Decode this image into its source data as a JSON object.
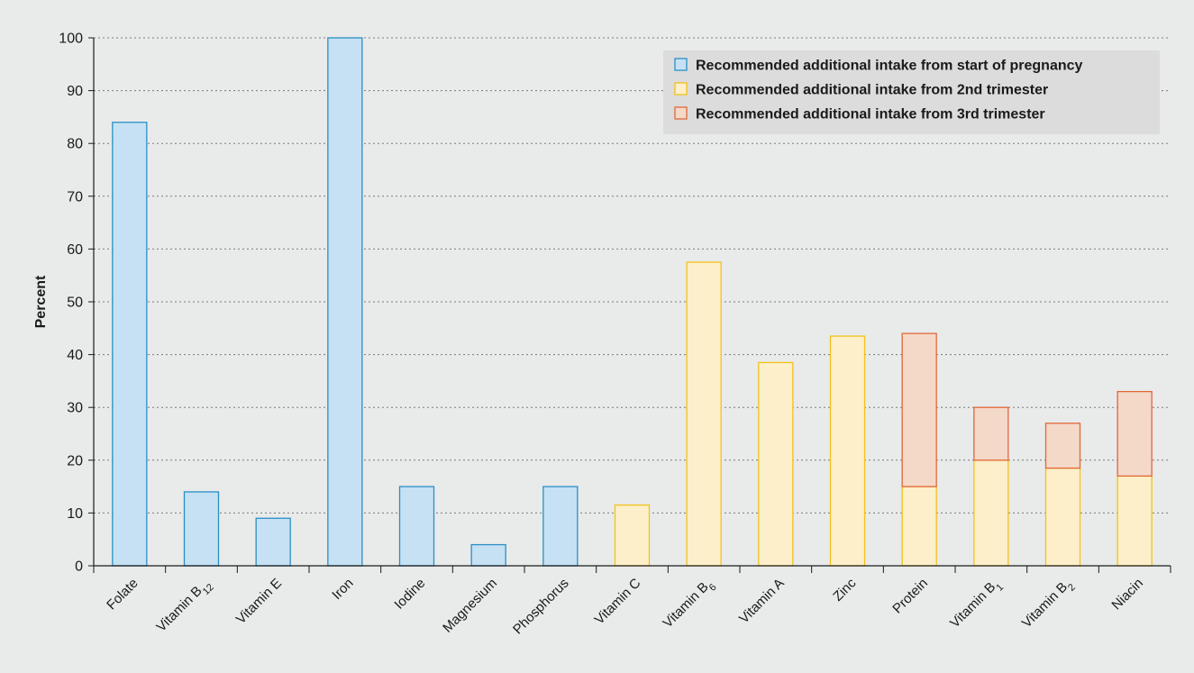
{
  "chart_data": {
    "type": "bar",
    "stacked": true,
    "ylabel": "Percent",
    "xlabel": "",
    "ylim": [
      0,
      100
    ],
    "yticks": [
      0,
      10,
      20,
      30,
      40,
      50,
      60,
      70,
      80,
      90,
      100
    ],
    "grid": "horizontal dotted",
    "legend_position": "top-right",
    "categories": [
      {
        "base": "Folate",
        "sub": ""
      },
      {
        "base": "Vitamin B",
        "sub": "12"
      },
      {
        "base": "Vitamin E",
        "sub": ""
      },
      {
        "base": "Iron",
        "sub": ""
      },
      {
        "base": "Iodine",
        "sub": ""
      },
      {
        "base": "Magnesium",
        "sub": ""
      },
      {
        "base": "Phosphorus",
        "sub": ""
      },
      {
        "base": "Vitamin C",
        "sub": ""
      },
      {
        "base": "Vitamin B",
        "sub": "6"
      },
      {
        "base": "Vitamin A",
        "sub": ""
      },
      {
        "base": "Zinc",
        "sub": ""
      },
      {
        "base": "Protein",
        "sub": ""
      },
      {
        "base": "Vitamin B",
        "sub": "1"
      },
      {
        "base": "Vitamin B",
        "sub": "2"
      },
      {
        "base": "Niacin",
        "sub": ""
      }
    ],
    "series": [
      {
        "name": "Recommended additional intake from start of pregnancy",
        "fill": "#c6e1f3",
        "stroke": "#2a8fc6",
        "values": [
          84,
          14,
          9,
          100,
          15,
          4,
          15,
          0,
          0,
          0,
          0,
          0,
          0,
          0,
          0
        ]
      },
      {
        "name": "Recommended additional intake from 2nd trimester",
        "fill": "#fdefc9",
        "stroke": "#f3c21b",
        "values": [
          0,
          0,
          0,
          0,
          0,
          0,
          0,
          11.5,
          57.5,
          38.5,
          43.5,
          15,
          20,
          18.5,
          17
        ]
      },
      {
        "name": "Recommended additional intake from 3rd trimester",
        "fill": "#f4d9c9",
        "stroke": "#e0683a",
        "values": [
          0,
          0,
          0,
          0,
          0,
          0,
          0,
          0,
          0,
          0,
          0,
          29,
          10,
          8.5,
          16
        ]
      }
    ]
  }
}
